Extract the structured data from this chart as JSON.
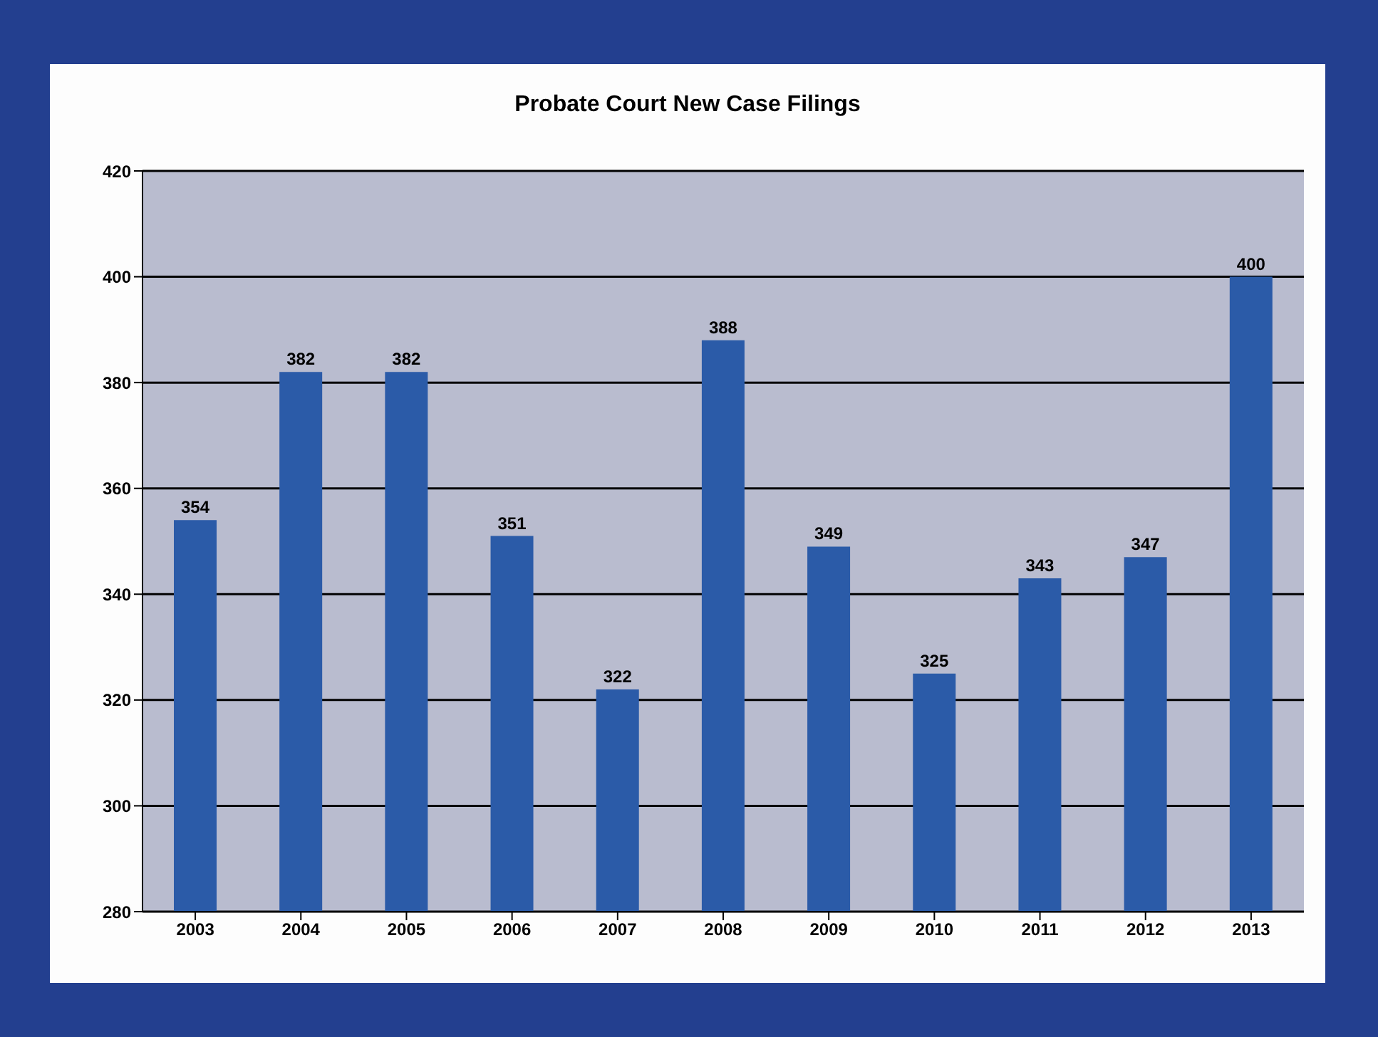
{
  "chart_data": {
    "type": "bar",
    "title": "Probate Court New Case Filings",
    "categories": [
      "2003",
      "2004",
      "2005",
      "2006",
      "2007",
      "2008",
      "2009",
      "2010",
      "2011",
      "2012",
      "2013"
    ],
    "values": [
      354,
      382,
      382,
      351,
      322,
      388,
      349,
      325,
      343,
      347,
      400
    ],
    "color": "#2b5ba8",
    "ylim": [
      280,
      420
    ],
    "yticks": [
      280,
      300,
      320,
      340,
      360,
      380,
      400,
      420
    ],
    "grid": "y",
    "data_labels": true,
    "legend": false
  }
}
